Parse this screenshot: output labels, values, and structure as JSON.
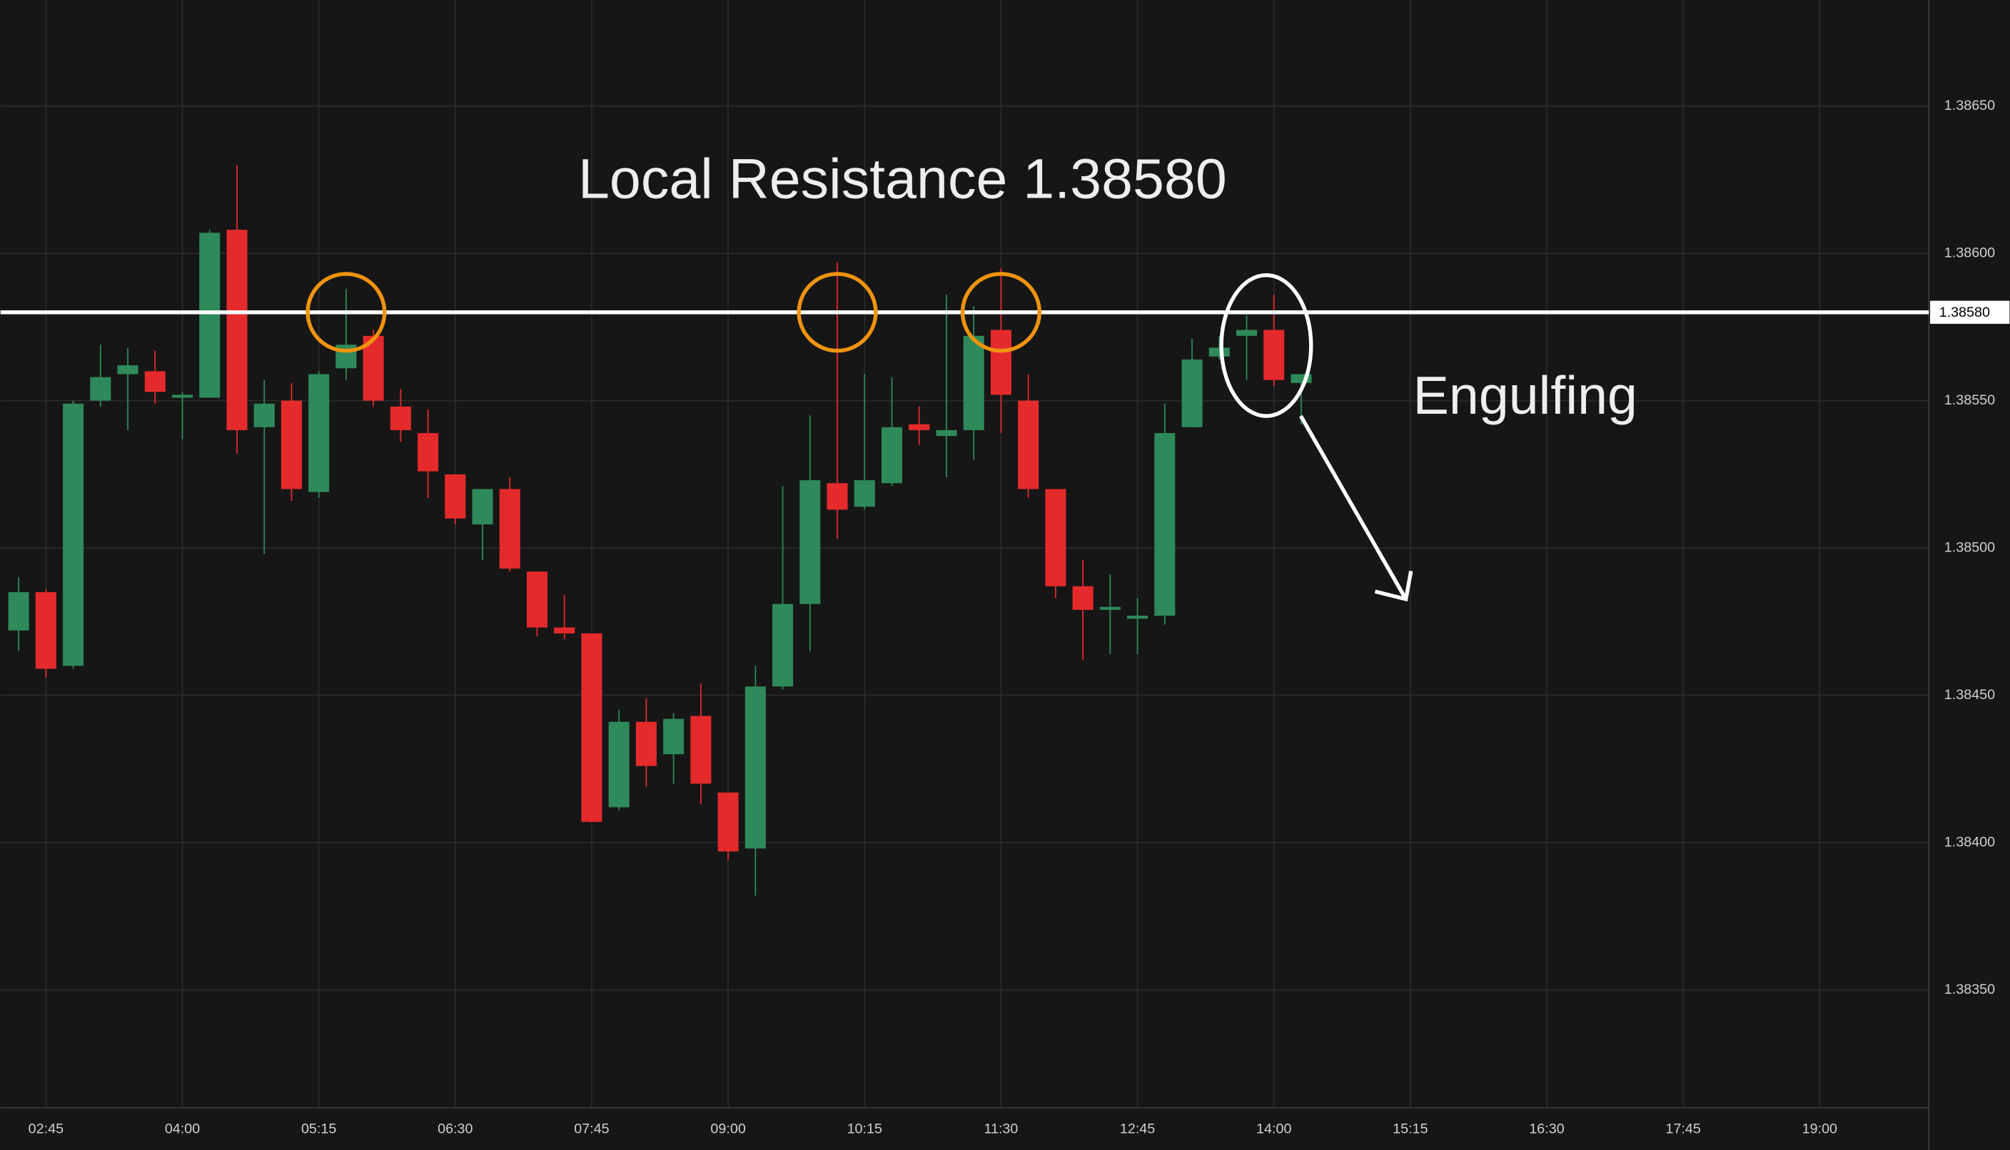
{
  "chart_data": {
    "type": "candlestick",
    "title": "Local Resistance 1.38580",
    "annotation": "Engulfing",
    "x": [
      "02:30",
      "02:45",
      "03:00",
      "03:15",
      "03:30",
      "03:45",
      "04:00",
      "04:15",
      "04:30",
      "04:45",
      "05:00",
      "05:15",
      "05:30",
      "05:45",
      "06:00",
      "06:15",
      "06:30",
      "06:45",
      "07:00",
      "07:15",
      "07:30",
      "07:45",
      "08:00",
      "08:15",
      "08:30",
      "08:45",
      "09:00",
      "09:15",
      "09:30",
      "09:45",
      "10:00",
      "10:15",
      "10:30",
      "10:45",
      "11:00",
      "11:15",
      "11:30",
      "11:45",
      "12:00",
      "12:15",
      "12:30",
      "12:45",
      "13:00",
      "13:15",
      "13:30",
      "13:45",
      "14:00",
      "14:15"
    ],
    "open": [
      1.38472,
      1.38485,
      1.3846,
      1.3855,
      1.38559,
      1.3856,
      1.38551,
      1.38551,
      1.38608,
      1.38541,
      1.3855,
      1.38519,
      1.38561,
      1.38572,
      1.38548,
      1.38539,
      1.38525,
      1.38508,
      1.3852,
      1.38492,
      1.38473,
      1.38471,
      1.38412,
      1.38441,
      1.3843,
      1.38443,
      1.38417,
      1.38398,
      1.38453,
      1.38481,
      1.38522,
      1.38514,
      1.38522,
      1.38542,
      1.38538,
      1.3854,
      1.38574,
      1.3855,
      1.3852,
      1.38487,
      1.38479,
      1.38476,
      1.38477,
      1.38541,
      1.38565,
      1.38572,
      1.38574,
      1.38556
    ],
    "high": [
      1.3849,
      1.38486,
      1.3855,
      1.38569,
      1.38568,
      1.38567,
      1.38553,
      1.38608,
      1.3863,
      1.38557,
      1.38556,
      1.3856,
      1.38588,
      1.38574,
      1.38554,
      1.38547,
      1.38525,
      1.3852,
      1.38524,
      1.38492,
      1.38484,
      1.38471,
      1.38445,
      1.38449,
      1.38444,
      1.38454,
      1.38417,
      1.3846,
      1.38521,
      1.38545,
      1.38597,
      1.38559,
      1.38558,
      1.38548,
      1.38586,
      1.38582,
      1.38595,
      1.38559,
      1.3852,
      1.38496,
      1.38491,
      1.38483,
      1.38549,
      1.38571,
      1.38572,
      1.38579,
      1.38586,
      1.38559
    ],
    "low": [
      1.38465,
      1.38456,
      1.38459,
      1.38548,
      1.3854,
      1.38549,
      1.38537,
      1.38551,
      1.38532,
      1.38498,
      1.38516,
      1.38517,
      1.38557,
      1.38548,
      1.38536,
      1.38517,
      1.38508,
      1.38496,
      1.38492,
      1.3847,
      1.38469,
      1.38407,
      1.38411,
      1.38419,
      1.3842,
      1.38413,
      1.38394,
      1.38382,
      1.38452,
      1.38465,
      1.38503,
      1.38513,
      1.38521,
      1.38535,
      1.38524,
      1.3853,
      1.38539,
      1.38517,
      1.38483,
      1.38462,
      1.38464,
      1.38464,
      1.38474,
      1.38541,
      1.38564,
      1.38557,
      1.38555,
      1.38542
    ],
    "close": [
      1.38485,
      1.38459,
      1.38549,
      1.38558,
      1.38562,
      1.38553,
      1.38552,
      1.38607,
      1.3854,
      1.38549,
      1.3852,
      1.38559,
      1.38569,
      1.3855,
      1.3854,
      1.38526,
      1.3851,
      1.3852,
      1.38493,
      1.38473,
      1.38471,
      1.38407,
      1.38441,
      1.38426,
      1.38442,
      1.3842,
      1.38397,
      1.38453,
      1.38481,
      1.38523,
      1.38513,
      1.38523,
      1.38541,
      1.3854,
      1.3854,
      1.38572,
      1.38552,
      1.3852,
      1.38487,
      1.38479,
      1.3848,
      1.38477,
      1.38539,
      1.38564,
      1.38568,
      1.38574,
      1.38557,
      1.38559
    ],
    "up_color": "#2e8a5a",
    "down_color": "#e52a2c",
    "xlim": [
      "02:20",
      "20:00"
    ],
    "xticks": [
      "02:45",
      "04:00",
      "05:15",
      "06:30",
      "07:45",
      "09:00",
      "10:15",
      "11:30",
      "12:45",
      "14:00",
      "15:15",
      "16:30",
      "17:45",
      "19:00"
    ],
    "ylim": [
      1.3831,
      1.38686
    ],
    "yticks": [
      {
        "value": 1.3835,
        "label": "1.38350"
      },
      {
        "value": 1.384,
        "label": "1.38400"
      },
      {
        "value": 1.3845,
        "label": "1.38450"
      },
      {
        "value": 1.385,
        "label": "1.38500"
      },
      {
        "value": 1.3855,
        "label": "1.38550"
      },
      {
        "value": 1.386,
        "label": "1.38600"
      },
      {
        "value": 1.3865,
        "label": "1.38650"
      }
    ],
    "grid": true,
    "resistance": {
      "value": 1.3858,
      "label": "1.38580",
      "color": "#ffffff"
    },
    "highlights": [
      {
        "x": "05:30",
        "shape": "circle",
        "color": "#f0930f"
      },
      {
        "x": "10:00",
        "shape": "circle",
        "color": "#f0930f"
      },
      {
        "x": "11:30",
        "shape": "circle",
        "color": "#f0930f"
      },
      {
        "x": "14:00",
        "shape": "ellipse",
        "color": "#ffffff"
      }
    ]
  }
}
